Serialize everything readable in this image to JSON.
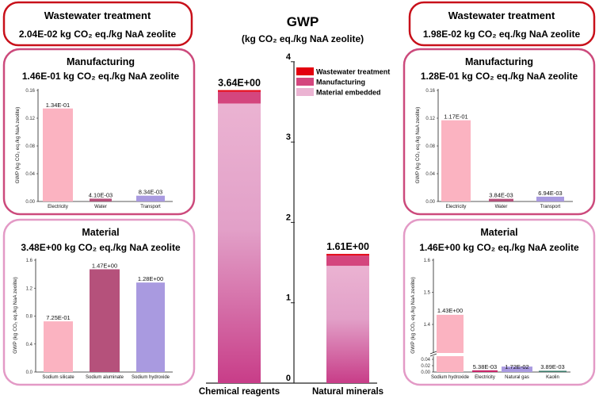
{
  "center": {
    "title": "GWP",
    "subtitle": "(kg CO₂ eq./kg NaA zeolite)"
  },
  "left": {
    "wastewater": {
      "title": "Wastewater treatment",
      "total": "2.04E-02 kg CO₂ eq./kg NaA zeolite"
    },
    "manufacturing": {
      "title": "Manufacturing",
      "total": "1.46E-01 kg CO₂ eq./kg NaA zeolite"
    },
    "material": {
      "title": "Material",
      "total": "3.48E+00 kg CO₂ eq./kg NaA zeolite"
    }
  },
  "right": {
    "wastewater": {
      "title": "Wastewater treatment",
      "total": "1.98E-02 kg CO₂ eq./kg NaA zeolite"
    },
    "manufacturing": {
      "title": "Manufacturing",
      "total": "1.28E-01 kg CO₂ eq./kg NaA zeolite"
    },
    "material": {
      "title": "Material",
      "total": "1.46E+00 kg CO₂ eq./kg NaA zeolite"
    }
  },
  "colors": {
    "wastewater": "#e3000f",
    "manufacturing": "#d4467e",
    "material_top": "#ebb3d2",
    "material_bottom": "#c83d88",
    "pink": "#fbb3c1",
    "mauve": "#b5517b",
    "lavender": "#a99ae0",
    "crimson": "#c8286a",
    "teal": "#3b7a6a",
    "box_wastewater": "#c8101a",
    "box_manufacturing": "#cc4a7c",
    "box_material": "#e39ac6"
  },
  "chart_data": [
    {
      "type": "bar",
      "stacked": true,
      "categories": [
        "Chemical reagents",
        "Natural minerals"
      ],
      "series": [
        {
          "name": "Material embedded",
          "values": [
            3.48,
            1.46
          ]
        },
        {
          "name": "Manufacturing",
          "values": [
            0.146,
            0.128
          ]
        },
        {
          "name": "Wastewater treatment",
          "values": [
            0.0204,
            0.0198
          ]
        }
      ],
      "totals_labels": [
        "3.64E+00",
        "1.61E+00"
      ],
      "yticks": [
        "0",
        "1",
        "2",
        "3",
        "4"
      ],
      "ylim": [
        0,
        4
      ],
      "legend": "top-right"
    },
    {
      "type": "bar",
      "categories": [
        "Electricity",
        "Water",
        "Transport"
      ],
      "values": [
        0.134,
        0.0041,
        0.00834
      ],
      "labels": [
        "1.34E-01",
        "4.10E-03",
        "8.34E-03"
      ],
      "ylabel": "GWP (kg CO₂ eq./kg NaA zeolite)",
      "yticks": [
        "0.00",
        "0.04",
        "0.08",
        "0.12",
        "0.16"
      ],
      "ylim": [
        0,
        0.16
      ]
    },
    {
      "type": "bar",
      "categories": [
        "Sodium silicate",
        "Sodium aluminate",
        "Sodium hydroxide"
      ],
      "values": [
        0.725,
        1.47,
        1.28
      ],
      "labels": [
        "7.25E-01",
        "1.47E+00",
        "1.28E+00"
      ],
      "ylabel": "GWP (kg CO₂ eq./kg NaA zeolite)",
      "yticks": [
        "0.0",
        "0.4",
        "0.8",
        "1.2",
        "1.6"
      ],
      "ylim": [
        0,
        1.6
      ]
    },
    {
      "type": "bar",
      "categories": [
        "Electricity",
        "Water",
        "Transport"
      ],
      "values": [
        0.117,
        0.00384,
        0.00694
      ],
      "labels": [
        "1.17E-01",
        "3.84E-03",
        "6.94E-03"
      ],
      "ylabel": "GWP (kg CO₂ eq./kg NaA zeolite)",
      "yticks": [
        "0.00",
        "0.04",
        "0.08",
        "0.12",
        "0.16"
      ],
      "ylim": [
        0,
        0.16
      ]
    },
    {
      "type": "bar",
      "broken_axis": true,
      "categories": [
        "Sodium hydroxide",
        "Electricity",
        "Natural gas",
        "Kaolin"
      ],
      "values": [
        1.43,
        0.00538,
        0.0172,
        0.00389
      ],
      "labels": [
        "1.43E+00",
        "5.38E-03",
        "1.72E-02",
        "3.89E-03"
      ],
      "ylabel": "GWP (kg CO₂ eq./kg NaA zeolite)",
      "yticks": [
        "0.00",
        "0.02",
        "0.04",
        "1.4",
        "1.5",
        "1.6"
      ],
      "ylim": [
        0,
        1.6
      ]
    }
  ]
}
